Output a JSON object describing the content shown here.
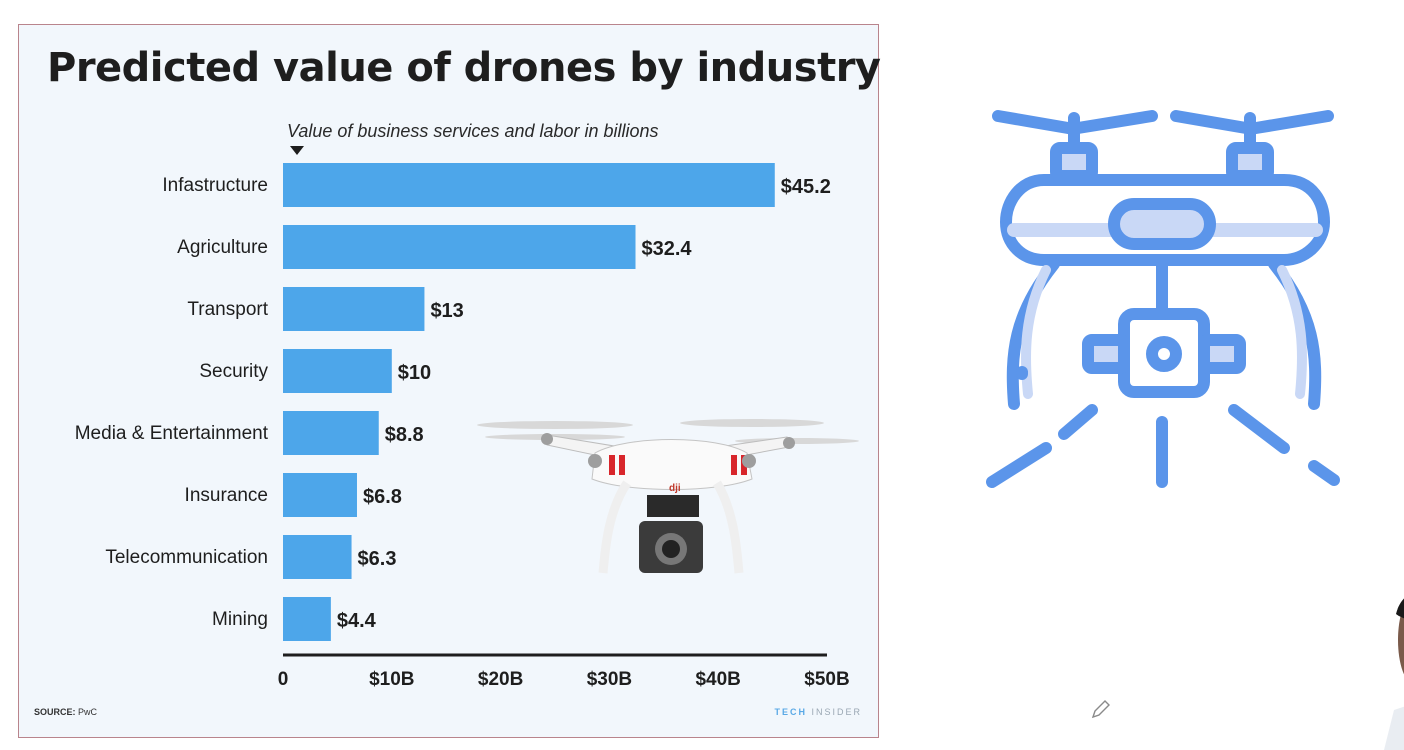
{
  "chart_data": {
    "type": "bar",
    "orientation": "horizontal",
    "title": "Predicted value of drones by industry",
    "subtitle": "Value of business services and labor in billions",
    "categories": [
      "Infastructure",
      "Agriculture",
      "Transport",
      "Security",
      "Media & Entertainment",
      "Insurance",
      "Telecommunication",
      "Mining"
    ],
    "values": [
      45.2,
      32.4,
      13,
      10,
      8.8,
      6.8,
      6.3,
      4.4
    ],
    "value_labels": [
      "$45.2",
      "$32.4",
      "$13",
      "$10",
      "$8.8",
      "$6.8",
      "$6.3",
      "$4.4"
    ],
    "xlim": [
      0,
      50
    ],
    "xticks": [
      0,
      10,
      20,
      30,
      40,
      50
    ],
    "xtick_labels": [
      "0",
      "$10B",
      "$20B",
      "$30B",
      "$40B",
      "$50B"
    ],
    "grid": false,
    "bar_color": "#4da6ea"
  },
  "footer": {
    "source_key": "SOURCE:",
    "source_value": "PwC",
    "brand_a": "TECH",
    "brand_b": "INSIDER"
  },
  "icons": {
    "drone_outline": "drone-icon",
    "photo": "quadcopter-photo",
    "pencil": "pencil-icon"
  },
  "colors": {
    "card_bg": "#f2f7fc",
    "icon_stroke": "#5b95ea",
    "icon_fill": "#c9d8f6"
  }
}
